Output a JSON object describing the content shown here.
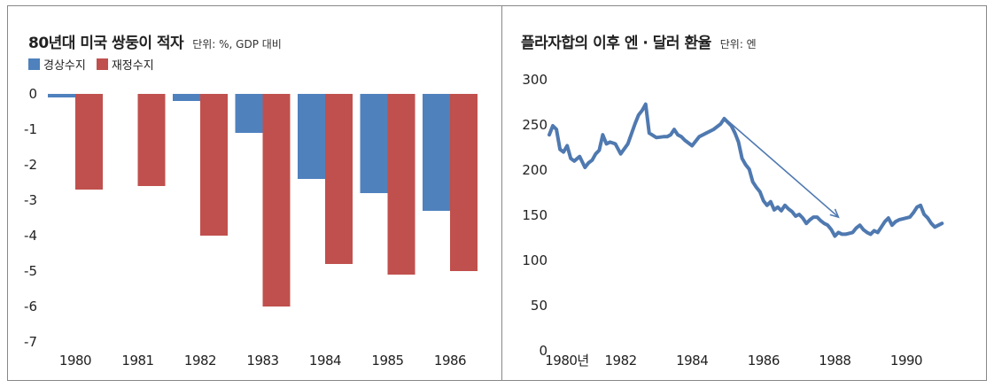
{
  "chart_data": [
    {
      "type": "bar",
      "title": "80년대 미국 쌍둥이 적자",
      "unit": "단위: %, GDP 대비",
      "categories": [
        "1980",
        "1981",
        "1982",
        "1983",
        "1984",
        "1985",
        "1986"
      ],
      "series": [
        {
          "name": "경상수지",
          "color": "#4f81bd",
          "values": [
            -0.1,
            0.0,
            -0.2,
            -1.1,
            -2.4,
            -2.8,
            -3.3
          ]
        },
        {
          "name": "재정수지",
          "color": "#c0504d",
          "values": [
            -2.7,
            -2.6,
            -4.0,
            -6.0,
            -4.8,
            -5.1,
            -5.0
          ]
        }
      ],
      "yticks": [
        "0",
        "-1",
        "-2",
        "-3",
        "-4",
        "-5",
        "-6",
        "-7"
      ],
      "ylim": [
        -7,
        0
      ],
      "legend": "top-left"
    },
    {
      "type": "line",
      "title": "플라자합의 이후 엔 · 달러 환율",
      "unit": "단위: 엔",
      "yticks": [
        "300",
        "250",
        "200",
        "150",
        "100",
        "50",
        "0"
      ],
      "ylim": [
        0,
        300
      ],
      "xlim": [
        1980,
        1991
      ],
      "xticks": [
        {
          "value": 1980,
          "label": "1980년"
        },
        {
          "value": 1982,
          "label": "1982"
        },
        {
          "value": 1984,
          "label": "1984"
        },
        {
          "value": 1986,
          "label": "1986"
        },
        {
          "value": 1988,
          "label": "1988"
        },
        {
          "value": 1990,
          "label": "1990"
        }
      ],
      "series": [
        {
          "color": "#4f79b0",
          "x": [
            1980.0,
            1980.1,
            1980.2,
            1980.3,
            1980.4,
            1980.5,
            1980.6,
            1980.7,
            1980.85,
            1981.0,
            1981.1,
            1981.2,
            1981.3,
            1981.4,
            1981.5,
            1981.6,
            1981.7,
            1981.85,
            1982.0,
            1982.2,
            1982.4,
            1982.5,
            1982.6,
            1982.7,
            1982.8,
            1983.0,
            1983.2,
            1983.3,
            1983.4,
            1983.5,
            1983.6,
            1983.7,
            1983.8,
            1984.0,
            1984.2,
            1984.4,
            1984.6,
            1984.8,
            1984.9,
            1985.0,
            1985.1,
            1985.2,
            1985.3,
            1985.4,
            1985.5,
            1985.6,
            1985.7,
            1985.8,
            1985.9,
            1986.0,
            1986.1,
            1986.2,
            1986.3,
            1986.4,
            1986.5,
            1986.6,
            1986.7,
            1986.8,
            1986.9,
            1987.0,
            1987.1,
            1987.2,
            1987.3,
            1987.4,
            1987.5,
            1987.6,
            1987.7,
            1987.8,
            1987.9,
            1988.0,
            1988.1,
            1988.2,
            1988.3,
            1988.5,
            1988.6,
            1988.7,
            1988.8,
            1988.9,
            1989.0,
            1989.1,
            1989.2,
            1989.3,
            1989.4,
            1989.5,
            1989.6,
            1989.7,
            1989.8,
            1990.0,
            1990.1,
            1990.2,
            1990.3,
            1990.4,
            1990.5,
            1990.6,
            1990.7,
            1990.8,
            1990.9,
            1991.0
          ],
          "y": [
            238,
            248,
            244,
            222,
            219,
            226,
            212,
            209,
            214,
            202,
            207,
            210,
            217,
            221,
            238,
            228,
            230,
            228,
            217,
            228,
            250,
            260,
            265,
            272,
            240,
            235,
            236,
            236,
            238,
            244,
            238,
            236,
            232,
            226,
            236,
            240,
            244,
            250,
            256,
            252,
            248,
            240,
            230,
            212,
            205,
            200,
            186,
            180,
            175,
            165,
            160,
            164,
            155,
            158,
            154,
            160,
            156,
            153,
            148,
            150,
            146,
            140,
            144,
            147,
            147,
            143,
            140,
            138,
            133,
            126,
            130,
            128,
            128,
            130,
            135,
            138,
            133,
            130,
            128,
            132,
            130,
            136,
            142,
            146,
            138,
            142,
            144,
            146,
            147,
            152,
            158,
            160,
            150,
            146,
            140,
            136,
            138,
            140
          ]
        }
      ],
      "arrow": {
        "from": [
          1984.9,
          257
        ],
        "to": [
          1988.1,
          147
        ]
      }
    }
  ]
}
